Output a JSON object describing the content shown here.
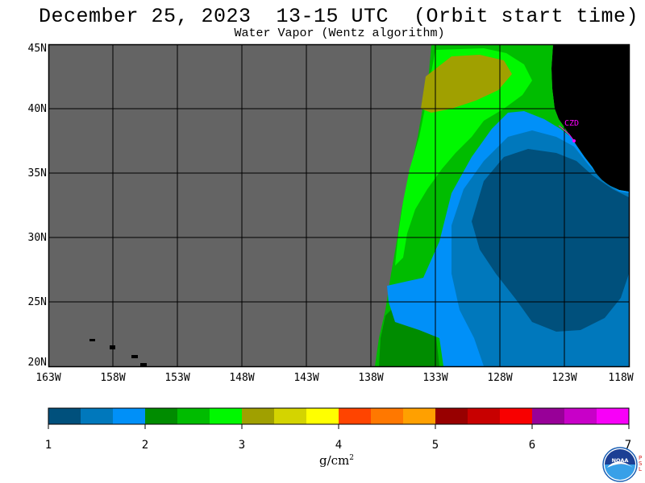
{
  "title": "December 25, 2023  13-15 UTC  (Orbit start time)",
  "subtitle": "Water Vapor (Wentz algorithm)",
  "latitude_labels": [
    "45N",
    "40N",
    "35N",
    "30N",
    "25N",
    "20N"
  ],
  "longitude_labels": [
    "163W",
    "158W",
    "153W",
    "148W",
    "143W",
    "138W",
    "133W",
    "128W",
    "123W",
    "118W"
  ],
  "station_label": "CZD",
  "colorbar": {
    "ticks": [
      "1",
      "2",
      "3",
      "4",
      "5",
      "6",
      "7"
    ],
    "unit_text": "g/cm",
    "unit_exponent": "2",
    "colors": [
      "#00507c",
      "#0078bc",
      "#0090f8",
      "#008c00",
      "#00bc00",
      "#00f800",
      "#a0a000",
      "#d4d400",
      "#ffff00",
      "#ff4400",
      "#ff7800",
      "#ffa000",
      "#980000",
      "#c80000",
      "#f80000",
      "#980098",
      "#c800c8",
      "#f800f8"
    ]
  },
  "map_colors": {
    "no_data": "#646464",
    "land": "#000000",
    "grid": "#000000",
    "station": "#ff00ff"
  },
  "logo": {
    "text": "NOAA",
    "side_text": "PSL"
  }
}
